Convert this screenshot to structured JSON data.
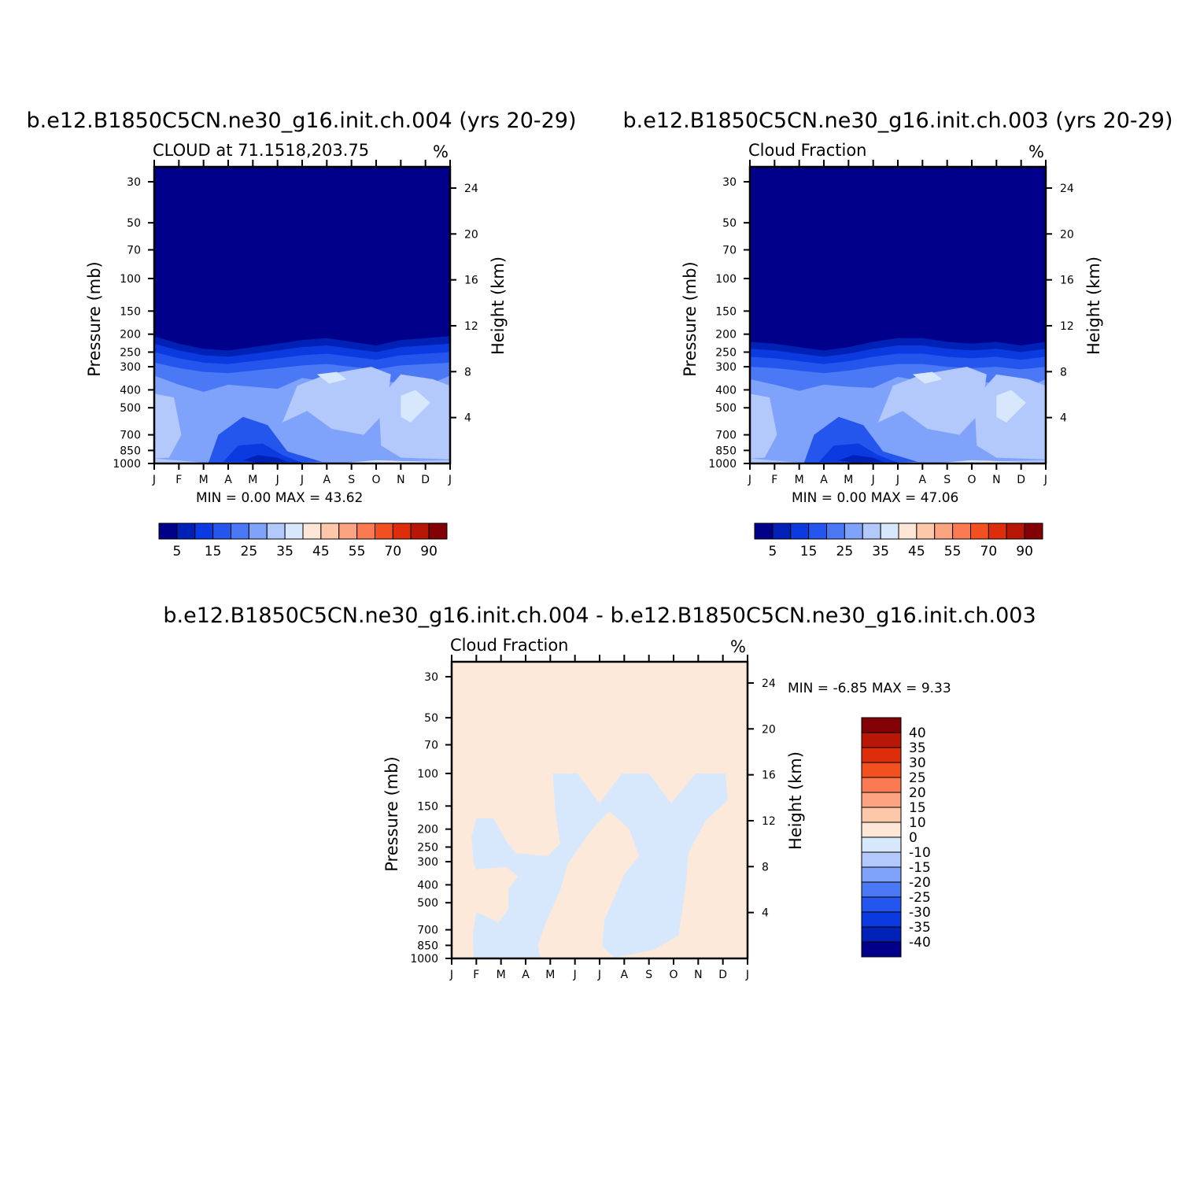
{
  "chart_data": [
    {
      "type": "heatmap",
      "title": "b.e12.B1850C5CN.ne30_g16.init.ch.004 (yrs 20-29)",
      "left_subtitle": "CLOUD at 71.1518,203.75",
      "right_subtitle": "%",
      "ylabel": "Pressure (mb)",
      "ylabel_right": "Height (km)",
      "x_ticks": [
        "J",
        "F",
        "M",
        "A",
        "M",
        "J",
        "J",
        "A",
        "S",
        "O",
        "N",
        "D",
        "J"
      ],
      "y_ticks": [
        "30",
        "50",
        "70",
        "100",
        "150",
        "200",
        "250",
        "300",
        "400",
        "500",
        "700",
        "850",
        "1000"
      ],
      "y2_ticks": [
        "24",
        "20",
        "16",
        "12",
        "8",
        "4"
      ],
      "min_max_text": "MIN =    0.00  MAX =    43.62",
      "colorbar_labels": [
        "5",
        "15",
        "25",
        "35",
        "45",
        "55",
        "70",
        "90"
      ],
      "tropopause_level_mb": [
        205,
        225,
        240,
        245,
        235,
        225,
        215,
        210,
        220,
        230,
        215,
        210,
        205
      ],
      "max": 43.62,
      "min": 0.0
    },
    {
      "type": "heatmap",
      "title": "b.e12.B1850C5CN.ne30_g16.init.ch.003 (yrs 20-29)",
      "left_subtitle": "Cloud Fraction",
      "right_subtitle": "%",
      "ylabel": "Pressure (mb)",
      "ylabel_right": "Height (km)",
      "x_ticks": [
        "J",
        "F",
        "M",
        "A",
        "M",
        "J",
        "J",
        "A",
        "S",
        "O",
        "N",
        "D",
        "J"
      ],
      "y_ticks": [
        "30",
        "50",
        "70",
        "100",
        "150",
        "200",
        "250",
        "300",
        "400",
        "500",
        "700",
        "850",
        "1000"
      ],
      "y2_ticks": [
        "24",
        "20",
        "16",
        "12",
        "8",
        "4"
      ],
      "min_max_text": "MIN =    0.00  MAX =    47.06",
      "colorbar_labels": [
        "5",
        "15",
        "25",
        "35",
        "45",
        "55",
        "70",
        "90"
      ],
      "tropopause_level_mb": [
        220,
        225,
        235,
        245,
        235,
        220,
        210,
        210,
        220,
        225,
        220,
        230,
        220
      ],
      "max": 47.06,
      "min": 0.0
    },
    {
      "type": "heatmap",
      "title": "b.e12.B1850C5CN.ne30_g16.init.ch.004 - b.e12.B1850C5CN.ne30_g16.init.ch.003",
      "left_subtitle": "Cloud Fraction",
      "right_subtitle": "%",
      "ylabel": "Pressure (mb)",
      "ylabel_right": "Height (km)",
      "x_ticks": [
        "J",
        "F",
        "M",
        "A",
        "M",
        "J",
        "J",
        "A",
        "S",
        "O",
        "N",
        "D",
        "J"
      ],
      "y_ticks": [
        "30",
        "50",
        "70",
        "100",
        "150",
        "200",
        "250",
        "300",
        "400",
        "500",
        "700",
        "850",
        "1000"
      ],
      "y2_ticks": [
        "24",
        "20",
        "16",
        "12",
        "8",
        "4"
      ],
      "min_max_text": "MIN =   -6.85  MAX =    9.33",
      "colorbar_labels": [
        "40",
        "35",
        "30",
        "25",
        "20",
        "15",
        "10",
        "0",
        "-10",
        "-15",
        "-20",
        "-25",
        "-30",
        "-35",
        "-40"
      ],
      "max": 9.33,
      "min": -6.85
    }
  ],
  "colors": {
    "palette": [
      "#00008a",
      "#0021b5",
      "#0b3be0",
      "#2456ed",
      "#4b79f5",
      "#7fa2fa",
      "#b3c9fb",
      "#d7e8fd",
      "#fde6d6",
      "#fdc8aa",
      "#fca482",
      "#fb7a51",
      "#f2511f",
      "#dd2d0a",
      "#b81606",
      "#830005"
    ],
    "positive_diff": "#fde9da",
    "negative_diff": "#d7e8fd"
  }
}
